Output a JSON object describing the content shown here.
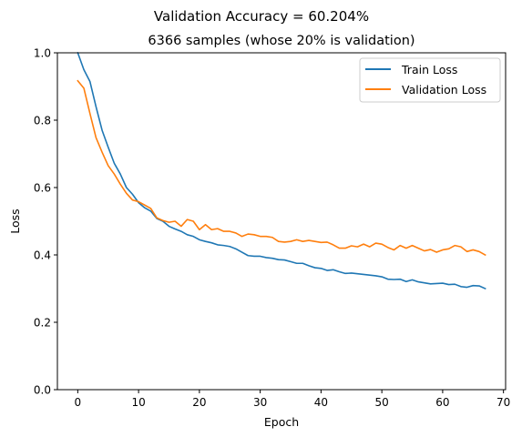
{
  "suptitle": "Validation Accuracy = 60.204%",
  "chart_data": {
    "type": "line",
    "title": "6366 samples (whose 20% is validation)",
    "xlabel": "Epoch",
    "ylabel": "Loss",
    "xlim": [
      -3.35,
      70.35
    ],
    "ylim": [
      0.0,
      1.0
    ],
    "xticks": [
      0,
      10,
      20,
      30,
      40,
      50,
      60,
      70
    ],
    "xtick_labels": [
      "0",
      "10",
      "20",
      "30",
      "40",
      "50",
      "60",
      "70"
    ],
    "yticks": [
      0.0,
      0.2,
      0.4,
      0.6,
      0.8,
      1.0
    ],
    "ytick_labels": [
      "0.0",
      "0.2",
      "0.4",
      "0.6",
      "0.8",
      "1.0"
    ],
    "grid": false,
    "legend_position": "top-right",
    "x": [
      0,
      1,
      2,
      3,
      4,
      5,
      6,
      7,
      8,
      9,
      10,
      11,
      12,
      13,
      14,
      15,
      16,
      17,
      18,
      19,
      20,
      21,
      22,
      23,
      24,
      25,
      26,
      27,
      28,
      29,
      30,
      31,
      32,
      33,
      34,
      35,
      36,
      37,
      38,
      39,
      40,
      41,
      42,
      43,
      44,
      45,
      46,
      47,
      48,
      49,
      50,
      51,
      52,
      53,
      54,
      55,
      56,
      57,
      58,
      59,
      60,
      61,
      62,
      63,
      64,
      65,
      66,
      67
    ],
    "series": [
      {
        "name": "Train Loss",
        "color": "#1f77b4",
        "values": [
          1.0,
          0.95,
          0.915,
          0.84,
          0.77,
          0.72,
          0.672,
          0.64,
          0.6,
          0.58,
          0.555,
          0.54,
          0.53,
          0.508,
          0.5,
          0.485,
          0.477,
          0.47,
          0.46,
          0.455,
          0.445,
          0.44,
          0.436,
          0.43,
          0.428,
          0.425,
          0.418,
          0.408,
          0.398,
          0.396,
          0.396,
          0.392,
          0.39,
          0.386,
          0.385,
          0.38,
          0.375,
          0.375,
          0.368,
          0.362,
          0.36,
          0.354,
          0.356,
          0.35,
          0.345,
          0.346,
          0.344,
          0.342,
          0.34,
          0.338,
          0.335,
          0.328,
          0.327,
          0.328,
          0.321,
          0.326,
          0.32,
          0.317,
          0.314,
          0.315,
          0.316,
          0.312,
          0.313,
          0.306,
          0.304,
          0.309,
          0.308,
          0.3
        ]
      },
      {
        "name": "Validation Loss",
        "color": "#ff7f0e",
        "values": [
          0.917,
          0.895,
          0.82,
          0.748,
          0.705,
          0.665,
          0.64,
          0.61,
          0.583,
          0.563,
          0.558,
          0.548,
          0.538,
          0.51,
          0.502,
          0.497,
          0.5,
          0.485,
          0.505,
          0.5,
          0.475,
          0.49,
          0.475,
          0.478,
          0.47,
          0.47,
          0.465,
          0.455,
          0.462,
          0.46,
          0.455,
          0.455,
          0.452,
          0.44,
          0.438,
          0.44,
          0.445,
          0.44,
          0.443,
          0.44,
          0.437,
          0.438,
          0.43,
          0.42,
          0.42,
          0.427,
          0.424,
          0.432,
          0.424,
          0.435,
          0.432,
          0.422,
          0.415,
          0.428,
          0.42,
          0.428,
          0.42,
          0.412,
          0.416,
          0.408,
          0.415,
          0.418,
          0.428,
          0.424,
          0.41,
          0.415,
          0.41,
          0.4
        ]
      }
    ]
  }
}
